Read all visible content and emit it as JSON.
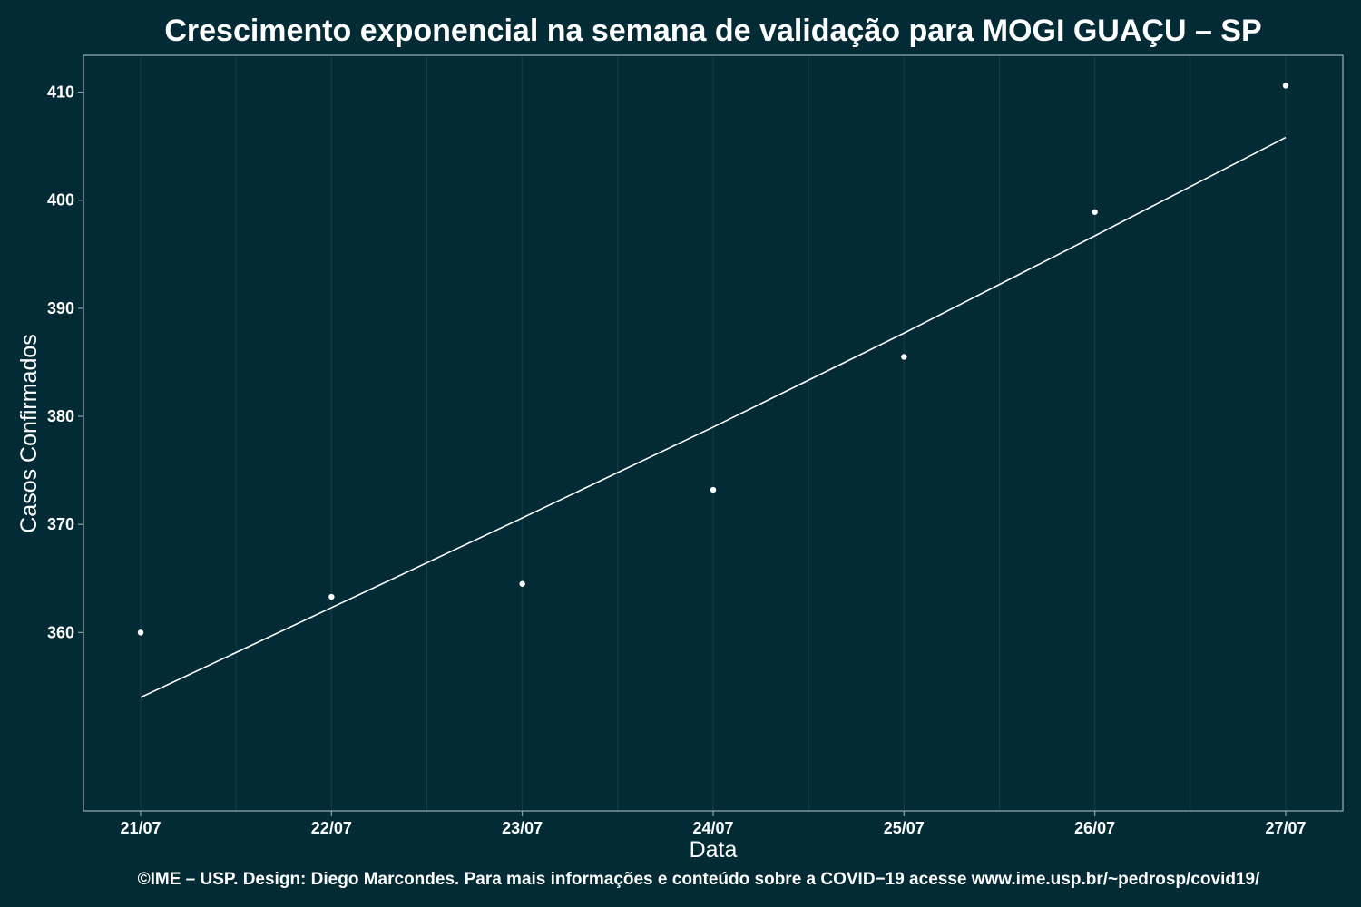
{
  "chart_data": {
    "type": "scatter",
    "title": "Crescimento exponencial na semana de validação para MOGI GUAÇU – SP",
    "xlabel": "Data",
    "ylabel": "Casos Confirmados",
    "categories": [
      "21/07",
      "22/07",
      "23/07",
      "24/07",
      "25/07",
      "26/07",
      "27/07"
    ],
    "y_ticks": [
      360,
      370,
      380,
      390,
      400,
      410
    ],
    "ylim": [
      343.5,
      413.4
    ],
    "grid": true,
    "series": [
      {
        "kind": "points",
        "values": [
          360,
          363.3,
          364.5,
          373.2,
          385.5,
          398.9,
          410.6
        ]
      },
      {
        "kind": "fitted-line",
        "values": [
          354.0,
          362.3,
          370.6,
          379.0,
          387.7,
          396.7,
          405.8
        ]
      }
    ],
    "caption": "©IME – USP. Design: Diego Marcondes. Para mais informações e conteúdo sobre a COVID−19 acesse www.ime.usp.br/~pedrosp/covid19/",
    "colors": {
      "background": "#022b35",
      "foreground": "#ffffff",
      "grid": "#153e48",
      "panel_border": "#8fa4a8"
    }
  }
}
